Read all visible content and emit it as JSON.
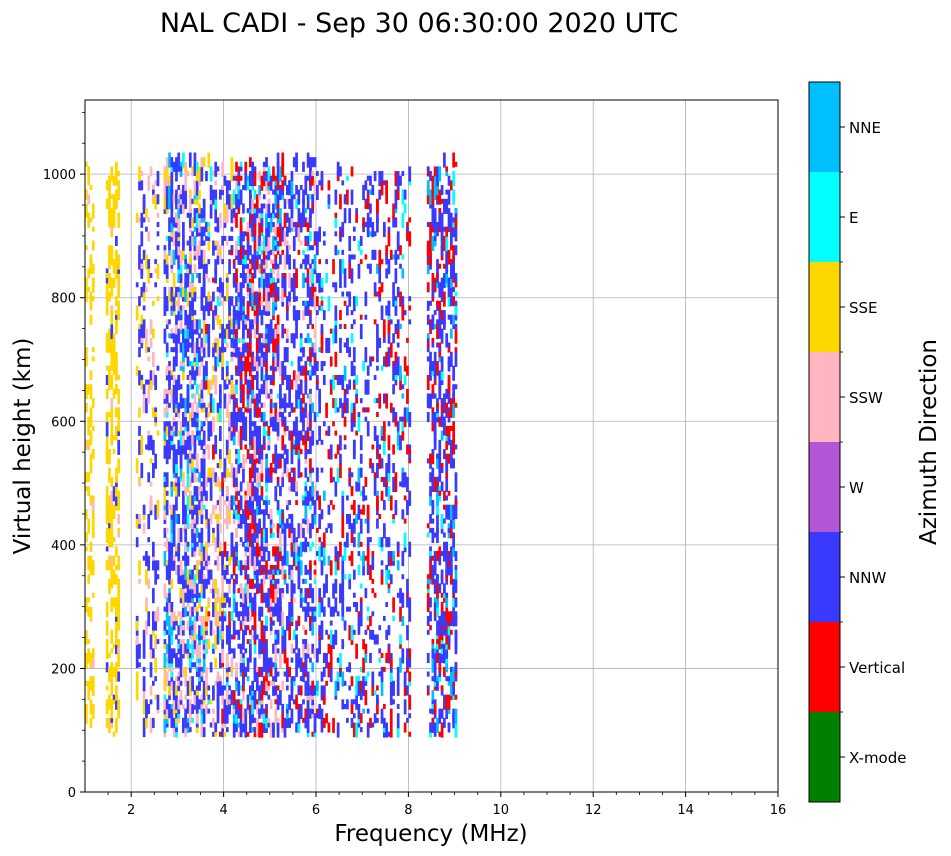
{
  "chart_data": {
    "type": "scatter",
    "title": "NAL CADI - Sep 30 06:30:00 2020 UTC",
    "xlabel": "Frequency (MHz)",
    "ylabel": "Virtual height (km)",
    "xlim": [
      1,
      16
    ],
    "ylim": [
      0,
      1120
    ],
    "xticks": [
      2,
      4,
      6,
      8,
      10,
      12,
      14,
      16
    ],
    "yticks": [
      0,
      200,
      400,
      600,
      800,
      1000
    ],
    "grid": true,
    "colorbar": {
      "label": "Azimuth Direction",
      "categories": [
        {
          "name": "X-mode",
          "color": "#008000"
        },
        {
          "name": "Vertical",
          "color": "#ff0000"
        },
        {
          "name": "NNW",
          "color": "#3a3aff"
        },
        {
          "name": "W",
          "color": "#b157d6"
        },
        {
          "name": "SSW",
          "color": "#ffb6c1"
        },
        {
          "name": "SSE",
          "color": "#ffd700"
        },
        {
          "name": "E",
          "color": "#00ffff"
        },
        {
          "name": "NNE",
          "color": "#00bfff"
        }
      ]
    },
    "echo_bands": [
      {
        "f_min": 1.0,
        "f_max": 1.2,
        "h_min": 90,
        "h_max": 1015,
        "density": 0.35,
        "weights": {
          "SSE": 0.9,
          "NNW": 0.05,
          "SSW": 0.05
        }
      },
      {
        "f_min": 1.45,
        "f_max": 1.75,
        "h_min": 90,
        "h_max": 1015,
        "density": 0.55,
        "weights": {
          "SSE": 0.85,
          "NNW": 0.1,
          "SSW": 0.05
        }
      },
      {
        "f_min": 2.1,
        "f_max": 2.6,
        "h_min": 90,
        "h_max": 1000,
        "density": 0.3,
        "weights": {
          "NNW": 0.5,
          "SSE": 0.3,
          "SSW": 0.2
        }
      },
      {
        "f_min": 2.7,
        "f_max": 3.6,
        "h_min": 90,
        "h_max": 1015,
        "density": 0.7,
        "weights": {
          "NNW": 0.5,
          "SSW": 0.25,
          "SSE": 0.1,
          "NNE": 0.1,
          "E": 0.05
        }
      },
      {
        "f_min": 3.6,
        "f_max": 4.2,
        "h_min": 90,
        "h_max": 1015,
        "density": 0.5,
        "weights": {
          "NNW": 0.5,
          "SSW": 0.25,
          "SSE": 0.15,
          "E": 0.05,
          "Vertical": 0.05
        }
      },
      {
        "f_min": 4.2,
        "f_max": 5.2,
        "h_min": 90,
        "h_max": 1015,
        "density": 0.75,
        "weights": {
          "NNW": 0.55,
          "Vertical": 0.2,
          "SSW": 0.15,
          "NNE": 0.05,
          "E": 0.05
        }
      },
      {
        "f_min": 5.2,
        "f_max": 6.0,
        "h_min": 90,
        "h_max": 1015,
        "density": 0.5,
        "weights": {
          "NNW": 0.6,
          "Vertical": 0.2,
          "SSW": 0.1,
          "E": 0.05,
          "NNE": 0.05
        }
      },
      {
        "f_min": 6.0,
        "f_max": 7.6,
        "h_min": 90,
        "h_max": 1000,
        "density": 0.3,
        "weights": {
          "NNW": 0.6,
          "Vertical": 0.25,
          "E": 0.1,
          "NNE": 0.05
        }
      },
      {
        "f_min": 7.6,
        "f_max": 8.05,
        "h_min": 90,
        "h_max": 1000,
        "density": 0.3,
        "weights": {
          "NNW": 0.5,
          "Vertical": 0.35,
          "E": 0.1,
          "NNE": 0.05
        }
      },
      {
        "f_min": 8.4,
        "f_max": 9.05,
        "h_min": 90,
        "h_max": 1015,
        "density": 0.6,
        "weights": {
          "NNW": 0.55,
          "Vertical": 0.3,
          "NNE": 0.1,
          "E": 0.05
        }
      }
    ]
  }
}
